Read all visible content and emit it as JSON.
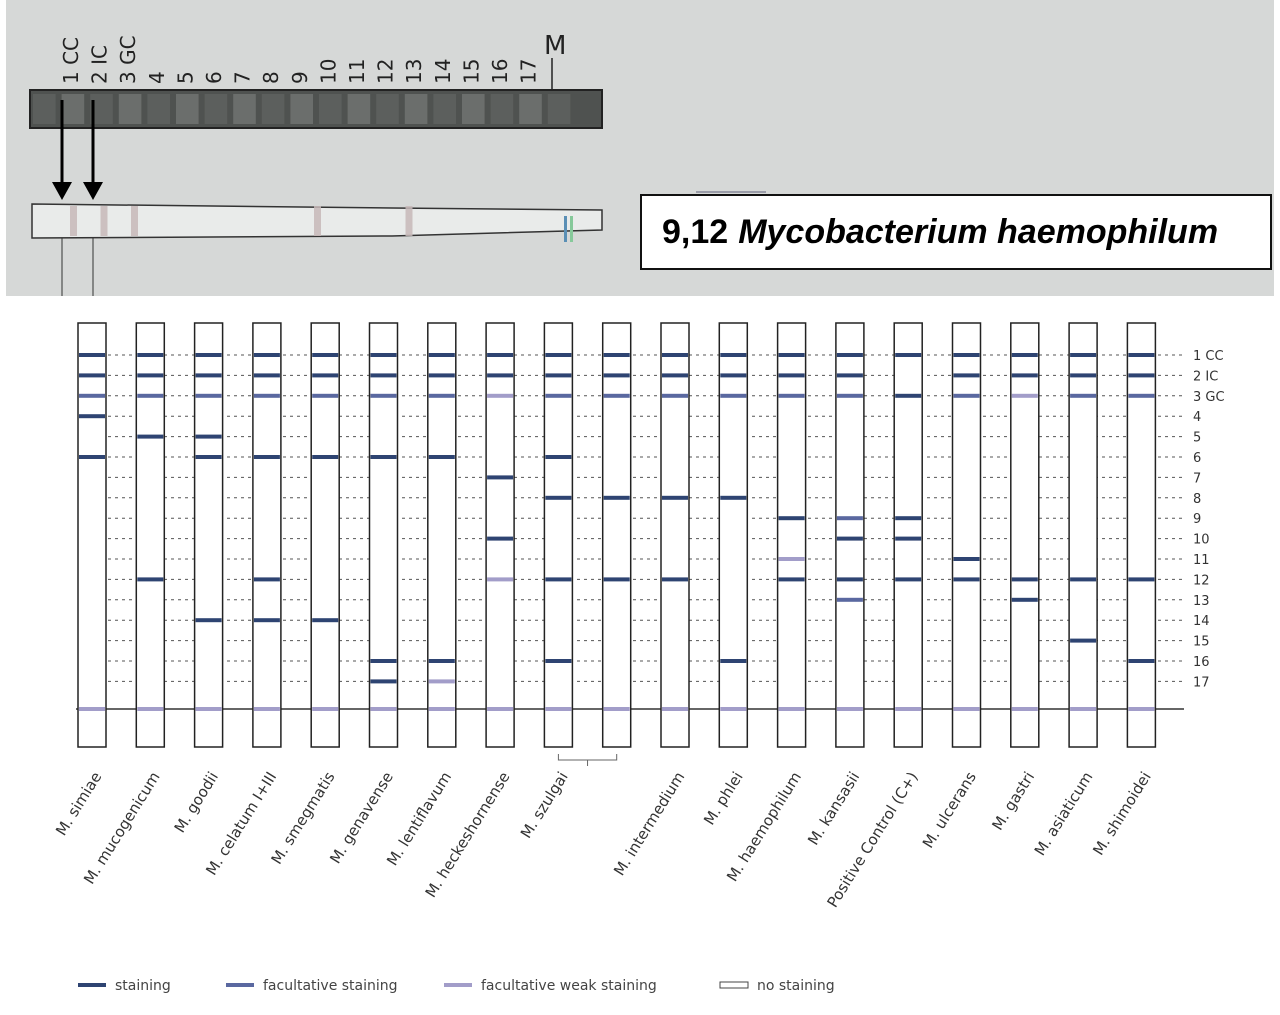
{
  "photo": {
    "top_labels": [
      "1 CC",
      "2 IC",
      "3 GC",
      "4",
      "5",
      "6",
      "7",
      "8",
      "9",
      "10",
      "11",
      "12",
      "13",
      "14",
      "15",
      "16",
      "17"
    ],
    "marker_label": "M",
    "result_lines": "9,12",
    "result_species": "Mycobacterium haemophilum",
    "strip_bands": [
      1,
      2,
      3,
      9,
      12
    ]
  },
  "chart": {
    "line_labels": [
      "1 CC",
      "2 IC",
      "3 GC",
      "4",
      "5",
      "6",
      "7",
      "8",
      "9",
      "10",
      "11",
      "12",
      "13",
      "14",
      "15",
      "16",
      "17"
    ],
    "legend": [
      {
        "type": "staining",
        "label": "staining"
      },
      {
        "type": "facultative",
        "label": "facultative staining"
      },
      {
        "type": "weak",
        "label": "facultative weak staining"
      },
      {
        "type": "none",
        "label": "no staining"
      }
    ],
    "colors": {
      "staining": "#2e4472",
      "facultative": "#5a68a0",
      "weak": "#a29dc9"
    },
    "strips": [
      {
        "name": "M. simiae",
        "bands": [
          [
            1,
            "s"
          ],
          [
            2,
            "s"
          ],
          [
            3,
            "f"
          ],
          [
            4,
            "s"
          ],
          [
            6,
            "s"
          ]
        ]
      },
      {
        "name": "M. mucogenicum",
        "bands": [
          [
            1,
            "s"
          ],
          [
            2,
            "s"
          ],
          [
            3,
            "f"
          ],
          [
            5,
            "s"
          ],
          [
            12,
            "s"
          ]
        ]
      },
      {
        "name": "M. goodii",
        "bands": [
          [
            1,
            "s"
          ],
          [
            2,
            "s"
          ],
          [
            3,
            "f"
          ],
          [
            5,
            "s"
          ],
          [
            6,
            "s"
          ],
          [
            14,
            "s"
          ]
        ]
      },
      {
        "name": "M. celatum I+III",
        "bands": [
          [
            1,
            "s"
          ],
          [
            2,
            "s"
          ],
          [
            3,
            "f"
          ],
          [
            6,
            "s"
          ],
          [
            12,
            "s"
          ],
          [
            14,
            "s"
          ]
        ]
      },
      {
        "name": "M. smegmatis",
        "bands": [
          [
            1,
            "s"
          ],
          [
            2,
            "s"
          ],
          [
            3,
            "f"
          ],
          [
            6,
            "s"
          ],
          [
            14,
            "s"
          ]
        ]
      },
      {
        "name": "M. genavense",
        "bands": [
          [
            1,
            "s"
          ],
          [
            2,
            "s"
          ],
          [
            3,
            "f"
          ],
          [
            6,
            "s"
          ],
          [
            16,
            "s"
          ],
          [
            17,
            "s"
          ]
        ]
      },
      {
        "name": "M. lentiflavum",
        "bands": [
          [
            1,
            "s"
          ],
          [
            2,
            "s"
          ],
          [
            3,
            "f"
          ],
          [
            6,
            "s"
          ],
          [
            16,
            "s"
          ],
          [
            17,
            "w"
          ]
        ]
      },
      {
        "name": "M. heckeshornense",
        "bands": [
          [
            1,
            "s"
          ],
          [
            2,
            "s"
          ],
          [
            3,
            "w"
          ],
          [
            7,
            "s"
          ],
          [
            10,
            "s"
          ],
          [
            12,
            "w"
          ]
        ]
      },
      {
        "name": "M. szulgai",
        "bands": [
          [
            1,
            "s"
          ],
          [
            2,
            "s"
          ],
          [
            3,
            "f"
          ],
          [
            6,
            "s"
          ],
          [
            8,
            "s"
          ],
          [
            12,
            "s"
          ],
          [
            16,
            "s"
          ]
        ]
      },
      {
        "name": "",
        "bands": [
          [
            1,
            "s"
          ],
          [
            2,
            "s"
          ],
          [
            3,
            "f"
          ],
          [
            8,
            "s"
          ],
          [
            12,
            "s"
          ]
        ]
      },
      {
        "name": "M. intermedium",
        "bands": [
          [
            1,
            "s"
          ],
          [
            2,
            "s"
          ],
          [
            3,
            "f"
          ],
          [
            8,
            "s"
          ],
          [
            12,
            "s"
          ]
        ]
      },
      {
        "name": "M. phlei",
        "bands": [
          [
            1,
            "s"
          ],
          [
            2,
            "s"
          ],
          [
            3,
            "f"
          ],
          [
            8,
            "s"
          ],
          [
            16,
            "s"
          ]
        ]
      },
      {
        "name": "M. haemophilum",
        "bands": [
          [
            1,
            "s"
          ],
          [
            2,
            "s"
          ],
          [
            3,
            "f"
          ],
          [
            9,
            "s"
          ],
          [
            11,
            "w"
          ],
          [
            12,
            "s"
          ]
        ]
      },
      {
        "name": "M. kansasii",
        "bands": [
          [
            1,
            "s"
          ],
          [
            2,
            "s"
          ],
          [
            3,
            "f"
          ],
          [
            9,
            "f"
          ],
          [
            10,
            "s"
          ],
          [
            12,
            "s"
          ],
          [
            13,
            "f"
          ]
        ]
      },
      {
        "name": "Positive Control (C+)",
        "bands": [
          [
            1,
            "s"
          ],
          [
            3,
            "s"
          ],
          [
            9,
            "s"
          ],
          [
            10,
            "s"
          ],
          [
            12,
            "s"
          ]
        ]
      },
      {
        "name": "M. ulcerans",
        "bands": [
          [
            1,
            "s"
          ],
          [
            2,
            "s"
          ],
          [
            3,
            "f"
          ],
          [
            11,
            "s"
          ],
          [
            12,
            "s"
          ]
        ]
      },
      {
        "name": "M. gastri",
        "bands": [
          [
            1,
            "s"
          ],
          [
            2,
            "s"
          ],
          [
            3,
            "w"
          ],
          [
            12,
            "s"
          ],
          [
            13,
            "s"
          ]
        ]
      },
      {
        "name": "M. asiaticum",
        "bands": [
          [
            1,
            "s"
          ],
          [
            2,
            "s"
          ],
          [
            3,
            "f"
          ],
          [
            12,
            "s"
          ],
          [
            15,
            "s"
          ]
        ]
      },
      {
        "name": "M. shimoidei",
        "bands": [
          [
            1,
            "s"
          ],
          [
            2,
            "s"
          ],
          [
            3,
            "f"
          ],
          [
            12,
            "s"
          ],
          [
            16,
            "s"
          ]
        ]
      }
    ]
  }
}
